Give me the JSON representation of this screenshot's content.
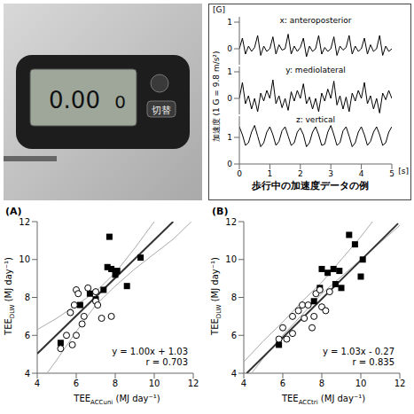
{
  "device": {
    "display_main": "0.00",
    "display_count": "0",
    "button": "切替"
  },
  "accel_figure": {
    "y_unit": "[G]",
    "y_label": "加速度 (1 G = 9.8 m/s²)",
    "x_unit": "[s]",
    "caption": "歩行中の加速度データの例",
    "t": [
      0,
      0.1,
      0.2,
      0.3,
      0.4,
      0.5,
      0.6,
      0.7,
      0.8,
      0.9,
      1,
      1.1,
      1.2,
      1.3,
      1.4,
      1.5,
      1.6,
      1.7,
      1.8,
      1.9,
      2,
      2.1,
      2.2,
      2.3,
      2.4,
      2.5,
      2.6,
      2.7,
      2.8,
      2.9,
      3,
      3.1,
      3.2,
      3.3,
      3.4,
      3.5,
      3.6,
      3.7,
      3.8,
      3.9,
      4,
      4.1,
      4.2,
      4.3,
      4.4,
      4.5,
      4.6,
      4.7,
      4.8,
      4.9,
      5
    ],
    "xlim": [
      0,
      5
    ],
    "xticks": [
      0,
      1,
      2,
      3,
      4,
      5
    ],
    "panels": [
      {
        "label": "x: anteroposterior",
        "color": "#000000",
        "ylim": [
          -0.6,
          1.2
        ],
        "yticks": [
          0,
          1
        ],
        "values": [
          0,
          0.4,
          -0.2,
          0.1,
          -0.1,
          0.05,
          0.5,
          -0.25,
          0.1,
          -0.1,
          0,
          0.45,
          -0.2,
          0.15,
          -0.05,
          0,
          0.55,
          -0.2,
          0.1,
          -0.1,
          0.05,
          0.4,
          -0.3,
          0.1,
          -0.1,
          0,
          0.5,
          -0.2,
          0.05,
          -0.1,
          0,
          0.45,
          -0.25,
          0.1,
          -0.05,
          0.05,
          0.5,
          -0.2,
          0.1,
          -0.1,
          0,
          0.4,
          -0.2,
          0.15,
          -0.1,
          0,
          0.5,
          -0.25,
          0.1,
          -0.1,
          0
        ]
      },
      {
        "label": "y: mediolateral",
        "color": "#000000",
        "ylim": [
          -0.6,
          1.2
        ],
        "yticks": [
          0,
          1
        ],
        "values": [
          0,
          0.6,
          -0.2,
          0.1,
          -0.4,
          0,
          -0.5,
          0.2,
          -0.1,
          0.3,
          0,
          0.7,
          -0.2,
          0.1,
          -0.35,
          0,
          -0.45,
          0.25,
          -0.1,
          0.3,
          0,
          0.55,
          -0.2,
          0.05,
          -0.4,
          0,
          -0.5,
          0.2,
          -0.1,
          0.35,
          0,
          0.65,
          -0.25,
          0.1,
          -0.4,
          0.05,
          -0.5,
          0.2,
          -0.1,
          0.3,
          0,
          0.6,
          -0.2,
          0.1,
          -0.4,
          0,
          -0.55,
          0.2,
          -0.05,
          0.3,
          0
        ]
      },
      {
        "label": "z: vertical",
        "color": "#000000",
        "ylim": [
          0,
          1.8
        ],
        "yticks": [
          0,
          1
        ],
        "values": [
          1.4,
          1.1,
          0.7,
          0.8,
          1.2,
          1.45,
          1.05,
          0.65,
          0.8,
          1.2,
          1.4,
          1.1,
          0.7,
          0.85,
          1.25,
          1.4,
          1.05,
          0.7,
          0.8,
          1.2,
          1.35,
          1.1,
          0.65,
          0.8,
          1.2,
          1.4,
          1.1,
          0.7,
          0.75,
          1.2,
          1.45,
          1.1,
          0.7,
          0.8,
          1.25,
          1.4,
          1.05,
          0.65,
          0.8,
          1.2,
          1.4,
          1.1,
          0.7,
          0.85,
          1.2,
          1.4,
          1.1,
          0.7,
          0.8,
          1.2,
          1.4
        ]
      }
    ]
  },
  "chart_data": [
    {
      "type": "scatter",
      "panel": "(A)",
      "grid": false,
      "x_label": {
        "text": "TEE",
        "sub": "ACCuni",
        "after": " (MJ day⁻¹)"
      },
      "y_label": {
        "text": "TEE",
        "sub": "DLW",
        "after": " (MJ day⁻¹)"
      },
      "xlim": [
        4,
        12
      ],
      "xticks": [
        4,
        6,
        8,
        10,
        12
      ],
      "ylim": [
        4,
        12
      ],
      "yticks": [
        4,
        6,
        8,
        10,
        12
      ],
      "series": [
        {
          "marker": "square",
          "color": "#000000",
          "x": [
            5.2,
            6.2,
            6.7,
            7.0,
            7.4,
            7.6,
            7.8,
            7.7,
            8.0,
            8.1,
            8.6,
            9.3
          ],
          "y": [
            5.6,
            7.6,
            8.2,
            7.9,
            8.4,
            9.6,
            9.5,
            11.2,
            9.2,
            9.4,
            8.6,
            10.1
          ]
        },
        {
          "marker": "circle",
          "color": "#000000",
          "x": [
            5.2,
            5.5,
            5.7,
            5.8,
            5.9,
            6.0,
            6.1,
            6.3,
            6.0,
            6.4,
            6.6,
            7.0,
            7.1,
            7.3,
            7.8,
            7.0
          ],
          "y": [
            5.3,
            6.0,
            7.2,
            5.5,
            7.6,
            8.4,
            8.2,
            6.6,
            6.0,
            7.0,
            8.5,
            7.8,
            7.6,
            6.9,
            7.0,
            8.3
          ]
        }
      ],
      "fit": {
        "color": "#333333",
        "x": [
          4,
          10.97
        ],
        "y": [
          5.03,
          12
        ]
      },
      "ci_upper": {
        "color": "#aaaaaa",
        "x": [
          4,
          5,
          6,
          7,
          8,
          9,
          10
        ],
        "y": [
          6.3,
          6.9,
          7.6,
          8.3,
          9.3,
          10.6,
          12
        ]
      },
      "ci_lower": {
        "color": "#aaaaaa",
        "x": [
          4.5,
          5,
          6,
          7,
          8,
          9,
          10,
          11,
          11.9
        ],
        "y": [
          4.0,
          4.7,
          6.2,
          7.6,
          8.6,
          9.5,
          10.3,
          11.1,
          12
        ]
      },
      "equation": "y = 1.00x + 1.03",
      "r": "r = 0.703"
    },
    {
      "type": "scatter",
      "panel": "(B)",
      "grid": false,
      "x_label": {
        "text": "TEE",
        "sub": "ACCtri",
        "after": " (MJ day⁻¹)"
      },
      "y_label": {
        "text": "TEE",
        "sub": "DLW",
        "after": " (MJ day⁻¹)"
      },
      "xlim": [
        4,
        12
      ],
      "xticks": [
        4,
        6,
        8,
        10,
        12
      ],
      "ylim": [
        4,
        12
      ],
      "yticks": [
        4,
        6,
        8,
        10,
        12
      ],
      "series": [
        {
          "marker": "square",
          "color": "#000000",
          "x": [
            5.8,
            7.6,
            7.9,
            8.0,
            8.3,
            8.6,
            8.7,
            8.9,
            9.0,
            9.4,
            10.1,
            10.0,
            9.7
          ],
          "y": [
            5.5,
            7.8,
            8.5,
            9.5,
            9.3,
            9.5,
            8.7,
            9.4,
            8.5,
            11.3,
            10.0,
            9.1,
            10.8
          ]
        },
        {
          "marker": "circle",
          "color": "#000000",
          "x": [
            5.8,
            6.0,
            6.2,
            6.5,
            6.5,
            6.8,
            7.0,
            7.1,
            7.3,
            7.5,
            7.6,
            7.7,
            7.9,
            8.0,
            8.2,
            8.4
          ],
          "y": [
            5.8,
            6.4,
            5.8,
            7.0,
            6.1,
            7.3,
            7.6,
            6.9,
            7.6,
            6.4,
            7.0,
            8.2,
            8.4,
            7.5,
            7.3,
            8.3
          ]
        }
      ],
      "fit": {
        "color": "#333333",
        "x": [
          4.15,
          11.91
        ],
        "y": [
          4.0,
          11.9
        ]
      },
      "ci_upper": {
        "color": "#aaaaaa",
        "x": [
          4,
          5,
          6,
          7,
          8,
          9,
          10,
          10.6
        ],
        "y": [
          4.6,
          5.7,
          6.7,
          7.8,
          8.8,
          10.0,
          11.2,
          12
        ]
      },
      "ci_lower": {
        "color": "#aaaaaa",
        "x": [
          4.4,
          5,
          6,
          7,
          8,
          9,
          10,
          11,
          12
        ],
        "y": [
          4.0,
          4.8,
          6.0,
          7.1,
          8.2,
          9.1,
          10.0,
          10.9,
          11.8
        ]
      },
      "equation": "y = 1.03x - 0.27",
      "r": "r = 0.835"
    }
  ]
}
